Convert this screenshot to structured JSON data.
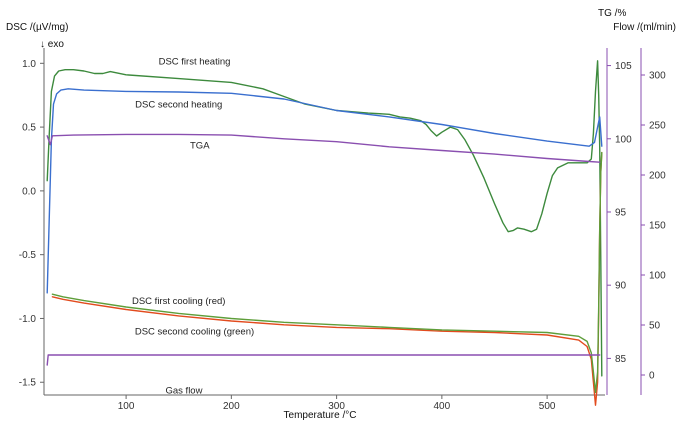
{
  "chart_data": {
    "type": "line",
    "axes": {
      "dsc": {
        "label": "DSC /(µV/mg)",
        "exo_label": "↓ exo",
        "range": [
          -1.6,
          1.12
        ],
        "ticks": [
          1.0,
          0.5,
          0,
          -0.5,
          -1.0,
          -1.5
        ],
        "tick_labels": [
          "1.0",
          "0.5",
          "0.0",
          "-0.5",
          "-1.0",
          "-1.5"
        ]
      },
      "tg": {
        "label": "TG /%",
        "range": [
          82.5,
          106.2
        ],
        "ticks": [
          105,
          100,
          95,
          90,
          85
        ],
        "tick_labels": [
          "105",
          "100",
          "95",
          "90",
          "85"
        ]
      },
      "flow": {
        "label": "Flow /(ml/min)",
        "range": [
          -20,
          327
        ],
        "ticks": [
          300,
          250,
          200,
          150,
          100,
          50,
          0
        ],
        "tick_labels": [
          "300",
          "250",
          "200",
          "150",
          "100",
          "50",
          "0"
        ]
      },
      "x": {
        "label": "Temperature /°C",
        "range": [
          22,
          555
        ],
        "ticks": [
          100,
          200,
          300,
          400,
          500
        ],
        "tick_labels": [
          "100",
          "200",
          "300",
          "400",
          "500"
        ]
      }
    },
    "grid": false,
    "series": [
      {
        "axis": "dsc",
        "color": "#3d8a3d",
        "x": [
          25,
          27,
          29,
          32,
          36,
          42,
          50,
          60,
          70,
          78,
          85,
          100,
          150,
          200,
          230,
          250,
          270,
          300,
          330,
          350,
          360,
          370,
          380,
          385,
          390,
          395,
          400,
          408,
          415,
          422,
          430,
          440,
          450,
          458,
          463,
          468,
          472,
          478,
          485,
          490,
          495,
          500,
          505,
          510,
          520,
          530,
          538,
          542,
          544,
          546,
          548,
          549,
          550,
          551,
          552
        ],
        "y": [
          0.08,
          0.45,
          0.78,
          0.9,
          0.94,
          0.95,
          0.95,
          0.94,
          0.92,
          0.92,
          0.935,
          0.91,
          0.88,
          0.85,
          0.8,
          0.74,
          0.68,
          0.63,
          0.61,
          0.6,
          0.58,
          0.57,
          0.55,
          0.52,
          0.47,
          0.43,
          0.46,
          0.5,
          0.48,
          0.4,
          0.28,
          0.1,
          -0.1,
          -0.25,
          -0.32,
          -0.31,
          -0.29,
          -0.3,
          -0.32,
          -0.3,
          -0.18,
          -0.02,
          0.12,
          0.18,
          0.22,
          0.22,
          0.22,
          0.25,
          0.45,
          0.78,
          1.02,
          0.75,
          0.35,
          -0.55,
          -1.45
        ]
      },
      {
        "axis": "dsc",
        "color": "#3a6fcf",
        "x": [
          25,
          27,
          29,
          31,
          34,
          38,
          45,
          60,
          100,
          150,
          200,
          250,
          300,
          350,
          400,
          450,
          500,
          540,
          545,
          548,
          550,
          552
        ],
        "y": [
          -0.8,
          -0.2,
          0.4,
          0.68,
          0.76,
          0.79,
          0.8,
          0.79,
          0.78,
          0.775,
          0.765,
          0.72,
          0.63,
          0.58,
          0.52,
          0.45,
          0.39,
          0.35,
          0.38,
          0.5,
          0.58,
          0.35
        ]
      },
      {
        "axis": "tg",
        "color": "#8a4fb0",
        "x": [
          25,
          28,
          30,
          50,
          100,
          150,
          200,
          250,
          300,
          350,
          400,
          450,
          500,
          540,
          550
        ],
        "y": [
          100.2,
          99.6,
          100.2,
          100.25,
          100.3,
          100.3,
          100.25,
          100.0,
          99.8,
          99.45,
          99.2,
          98.95,
          98.65,
          98.45,
          98.4
        ]
      },
      {
        "axis": "dsc",
        "color": "#e24b1e",
        "x": [
          30,
          40,
          60,
          100,
          150,
          200,
          250,
          300,
          350,
          400,
          450,
          500,
          530,
          538,
          542,
          544,
          546,
          548,
          549,
          550,
          551,
          552
        ],
        "y": [
          -0.83,
          -0.85,
          -0.88,
          -0.93,
          -0.98,
          -1.02,
          -1.05,
          -1.07,
          -1.08,
          -1.1,
          -1.11,
          -1.13,
          -1.17,
          -1.22,
          -1.32,
          -1.5,
          -1.68,
          -1.5,
          -0.95,
          -0.3,
          0.15,
          0.3
        ]
      },
      {
        "axis": "dsc",
        "color": "#5e9e3a",
        "x": [
          30,
          40,
          60,
          100,
          150,
          200,
          250,
          300,
          350,
          400,
          450,
          500,
          530,
          538,
          542,
          544,
          546,
          548,
          549,
          550,
          551,
          552
        ],
        "y": [
          -0.81,
          -0.83,
          -0.86,
          -0.91,
          -0.96,
          -1.0,
          -1.03,
          -1.05,
          -1.07,
          -1.09,
          -1.1,
          -1.11,
          -1.14,
          -1.18,
          -1.27,
          -1.42,
          -1.58,
          -1.42,
          -0.9,
          -0.3,
          0.15,
          0.3
        ]
      },
      {
        "axis": "flow",
        "color": "#8a4fb0",
        "x": [
          25,
          26,
          28,
          50,
          100,
          200,
          300,
          400,
          500,
          550
        ],
        "y": [
          10,
          20,
          20,
          20,
          20,
          20,
          20,
          20,
          20,
          20
        ]
      }
    ],
    "annotations": [
      {
        "text": "DSC first heating",
        "x": 165,
        "y": 1.02
      },
      {
        "text": "DSC second heating",
        "x": 150,
        "y": 0.68
      },
      {
        "text": "TGA",
        "x": 170,
        "y": 0.36
      },
      {
        "text": "DSC first cooling (red)",
        "x": 150,
        "y": -0.86
      },
      {
        "text": "DSC second cooling (green)",
        "x": 165,
        "y": -1.1
      },
      {
        "text": "Gas flow",
        "x": 155,
        "y": -1.56
      }
    ]
  }
}
